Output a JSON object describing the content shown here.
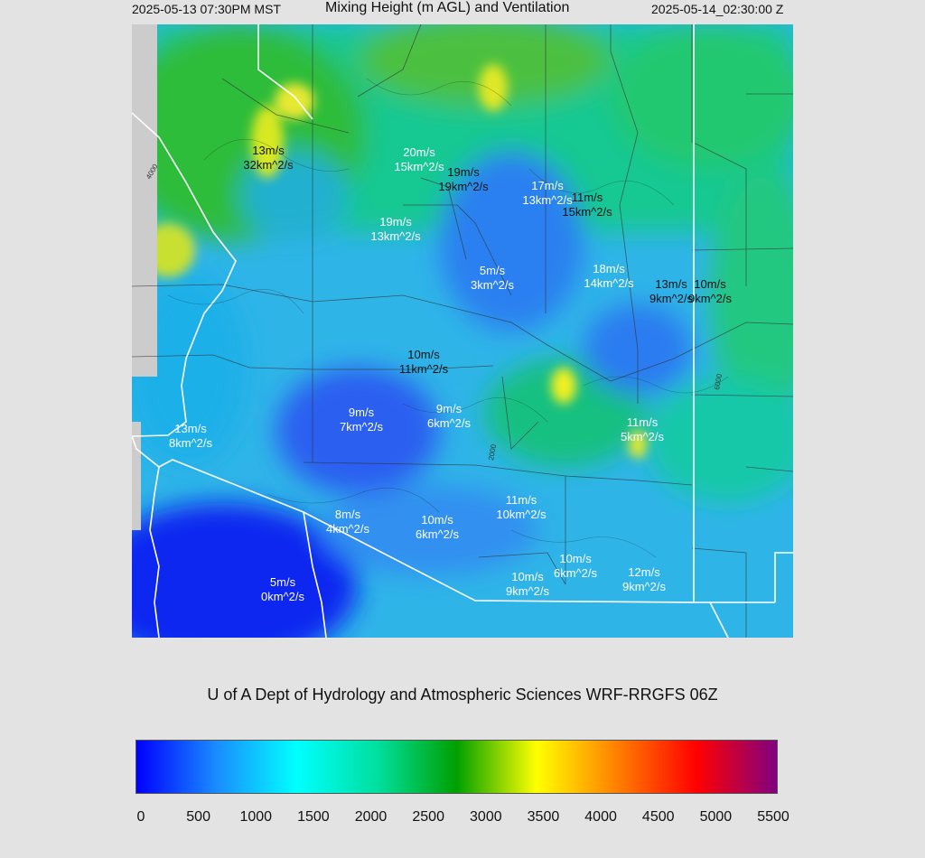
{
  "header": {
    "local_time": "2025-05-13 07:30PM MST",
    "title": "Mixing Height (m AGL) and Ventilation",
    "utc_time": "2025-05-14_02:30:00 Z"
  },
  "map": {
    "contour_labels": [
      "4000",
      "2000",
      "6000"
    ],
    "stations": [
      {
        "wind": "13m/s",
        "vent": "32km^2/s",
        "tone": "dark"
      },
      {
        "wind": "20m/s",
        "vent": "15km^2/s",
        "tone": "light"
      },
      {
        "wind": "19m/s",
        "vent": "19km^2/s",
        "tone": "dark"
      },
      {
        "wind": "17m/s",
        "vent": "13km^2/s",
        "tone": "light"
      },
      {
        "wind": "11m/s",
        "vent": "15km^2/s",
        "tone": "dark"
      },
      {
        "wind": "19m/s",
        "vent": "13km^2/s",
        "tone": "light"
      },
      {
        "wind": "5m/s",
        "vent": "3km^2/s",
        "tone": "light"
      },
      {
        "wind": "18m/s",
        "vent": "14km^2/s",
        "tone": "light"
      },
      {
        "wind": "13m/s",
        "vent": "9km^2/s",
        "tone": "dark"
      },
      {
        "wind": "10m/s",
        "vent": "9km^2/s",
        "tone": "dark"
      },
      {
        "wind": "10m/s",
        "vent": "11km^2/s",
        "tone": "dark"
      },
      {
        "wind": "9m/s",
        "vent": "7km^2/s",
        "tone": "light"
      },
      {
        "wind": "9m/s",
        "vent": "6km^2/s",
        "tone": "light"
      },
      {
        "wind": "13m/s",
        "vent": "8km^2/s",
        "tone": "light"
      },
      {
        "wind": "11m/s",
        "vent": "5km^2/s",
        "tone": "light"
      },
      {
        "wind": "11m/s",
        "vent": "10km^2/s",
        "tone": "light"
      },
      {
        "wind": "8m/s",
        "vent": "4km^2/s",
        "tone": "light"
      },
      {
        "wind": "10m/s",
        "vent": "6km^2/s",
        "tone": "light"
      },
      {
        "wind": "10m/s",
        "vent": "6km^2/s",
        "tone": "light"
      },
      {
        "wind": "10m/s",
        "vent": "9km^2/s",
        "tone": "light"
      },
      {
        "wind": "12m/s",
        "vent": "9km^2/s",
        "tone": "light"
      },
      {
        "wind": "5m/s",
        "vent": "0km^2/s",
        "tone": "light"
      }
    ]
  },
  "credit": "U of A Dept of Hydrology and Atmospheric Sciences WRF-RRGFS 06Z",
  "colorbar": {
    "ticks": [
      "0",
      "500",
      "1000",
      "1500",
      "2000",
      "2500",
      "3000",
      "3500",
      "4000",
      "4500",
      "5000",
      "5500"
    ],
    "colors": [
      "#0000ff",
      "#1a8cff",
      "#00ffff",
      "#00e0a0",
      "#00a000",
      "#ffff00",
      "#ff8000",
      "#ff0000",
      "#800080"
    ]
  }
}
